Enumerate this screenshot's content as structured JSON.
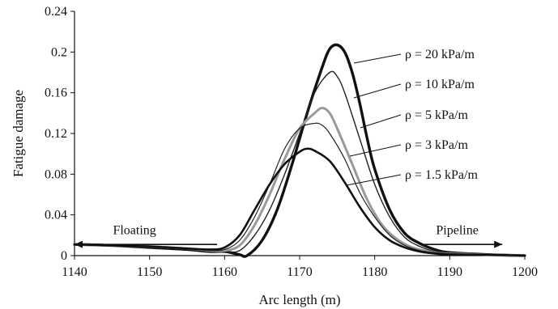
{
  "chart_data": {
    "type": "line",
    "title": "",
    "xlabel": "Arc length (m)",
    "ylabel": "Fatigue damage",
    "xlim": [
      1140,
      1200
    ],
    "ylim": [
      0,
      0.24
    ],
    "x_ticks": [
      "1140",
      "1150",
      "1160",
      "1170",
      "1180",
      "1190",
      "1200"
    ],
    "y_ticks": [
      "0",
      "0.04",
      "0.08",
      "0.12",
      "0.16",
      "0.2",
      "0.24"
    ],
    "grid": false,
    "series": [
      {
        "name": "ρ = 20 kPa/m",
        "color": "#111111",
        "points": [
          [
            1140,
            0.011
          ],
          [
            1145,
            0.01
          ],
          [
            1150,
            0.008
          ],
          [
            1155,
            0.006
          ],
          [
            1158,
            0.004
          ],
          [
            1160,
            0.004
          ],
          [
            1162,
            0.001
          ],
          [
            1163,
            0.0
          ],
          [
            1165,
            0.015
          ],
          [
            1167,
            0.045
          ],
          [
            1169,
            0.09
          ],
          [
            1171,
            0.14
          ],
          [
            1173,
            0.185
          ],
          [
            1174,
            0.203
          ],
          [
            1175,
            0.207
          ],
          [
            1176,
            0.2
          ],
          [
            1177,
            0.18
          ],
          [
            1178,
            0.15
          ],
          [
            1179,
            0.115
          ],
          [
            1180,
            0.085
          ],
          [
            1182,
            0.045
          ],
          [
            1184,
            0.022
          ],
          [
            1186,
            0.012
          ],
          [
            1188,
            0.006
          ],
          [
            1190,
            0.003
          ],
          [
            1195,
            0.001
          ],
          [
            1200,
            0.0
          ]
        ]
      },
      {
        "name": "ρ = 10 kPa/m",
        "color": "#222222",
        "points": [
          [
            1140,
            0.011
          ],
          [
            1145,
            0.01
          ],
          [
            1150,
            0.009
          ],
          [
            1155,
            0.007
          ],
          [
            1158,
            0.005
          ],
          [
            1160,
            0.004
          ],
          [
            1162,
            0.005
          ],
          [
            1164,
            0.02
          ],
          [
            1166,
            0.045
          ],
          [
            1168,
            0.08
          ],
          [
            1170,
            0.12
          ],
          [
            1172,
            0.16
          ],
          [
            1174,
            0.18
          ],
          [
            1175,
            0.176
          ],
          [
            1176,
            0.16
          ],
          [
            1178,
            0.115
          ],
          [
            1180,
            0.07
          ],
          [
            1182,
            0.038
          ],
          [
            1184,
            0.018
          ],
          [
            1186,
            0.009
          ],
          [
            1188,
            0.004
          ],
          [
            1190,
            0.002
          ],
          [
            1195,
            0.001
          ],
          [
            1200,
            0.0
          ]
        ]
      },
      {
        "name": "ρ = 5 kPa/m",
        "color": "#9a9a9a",
        "points": [
          [
            1140,
            0.011
          ],
          [
            1145,
            0.01
          ],
          [
            1150,
            0.009
          ],
          [
            1155,
            0.007
          ],
          [
            1158,
            0.005
          ],
          [
            1160,
            0.005
          ],
          [
            1162,
            0.01
          ],
          [
            1164,
            0.03
          ],
          [
            1166,
            0.06
          ],
          [
            1168,
            0.095
          ],
          [
            1170,
            0.125
          ],
          [
            1172,
            0.14
          ],
          [
            1173,
            0.145
          ],
          [
            1174,
            0.14
          ],
          [
            1175,
            0.125
          ],
          [
            1177,
            0.09
          ],
          [
            1179,
            0.055
          ],
          [
            1181,
            0.03
          ],
          [
            1183,
            0.016
          ],
          [
            1185,
            0.008
          ],
          [
            1188,
            0.003
          ],
          [
            1190,
            0.002
          ],
          [
            1195,
            0.001
          ],
          [
            1200,
            0.0
          ]
        ]
      },
      {
        "name": "ρ = 3 kPa/m",
        "color": "#222222",
        "points": [
          [
            1140,
            0.011
          ],
          [
            1145,
            0.01
          ],
          [
            1150,
            0.009
          ],
          [
            1155,
            0.007
          ],
          [
            1158,
            0.005
          ],
          [
            1160,
            0.006
          ],
          [
            1162,
            0.015
          ],
          [
            1164,
            0.038
          ],
          [
            1166,
            0.07
          ],
          [
            1168,
            0.105
          ],
          [
            1170,
            0.125
          ],
          [
            1172,
            0.13
          ],
          [
            1173,
            0.128
          ],
          [
            1174,
            0.12
          ],
          [
            1176,
            0.095
          ],
          [
            1178,
            0.062
          ],
          [
            1180,
            0.038
          ],
          [
            1182,
            0.02
          ],
          [
            1184,
            0.01
          ],
          [
            1186,
            0.005
          ],
          [
            1188,
            0.003
          ],
          [
            1190,
            0.002
          ],
          [
            1195,
            0.001
          ],
          [
            1200,
            0.0
          ]
        ]
      },
      {
        "name": "ρ = 1.5 kPa/m",
        "color": "#111111",
        "points": [
          [
            1140,
            0.011
          ],
          [
            1145,
            0.01
          ],
          [
            1150,
            0.009
          ],
          [
            1155,
            0.007
          ],
          [
            1158,
            0.006
          ],
          [
            1160,
            0.008
          ],
          [
            1162,
            0.02
          ],
          [
            1164,
            0.045
          ],
          [
            1166,
            0.07
          ],
          [
            1168,
            0.09
          ],
          [
            1170,
            0.102
          ],
          [
            1171,
            0.105
          ],
          [
            1172,
            0.103
          ],
          [
            1174,
            0.093
          ],
          [
            1176,
            0.072
          ],
          [
            1178,
            0.048
          ],
          [
            1180,
            0.028
          ],
          [
            1182,
            0.015
          ],
          [
            1184,
            0.008
          ],
          [
            1186,
            0.004
          ],
          [
            1188,
            0.002
          ],
          [
            1190,
            0.001
          ],
          [
            1195,
            0.001
          ],
          [
            1200,
            0.0
          ]
        ]
      }
    ],
    "annotations": [
      {
        "text": "Floating",
        "arrow": "left",
        "x_from": 1159,
        "x_to": 1140,
        "y": 0.011,
        "label_x": 1148,
        "label_y": 0.025
      },
      {
        "text": "Pipeline",
        "arrow": "right",
        "x_from": 1186,
        "x_to": 1197,
        "y": 0.011,
        "label_x": 1191,
        "label_y": 0.025
      }
    ]
  }
}
